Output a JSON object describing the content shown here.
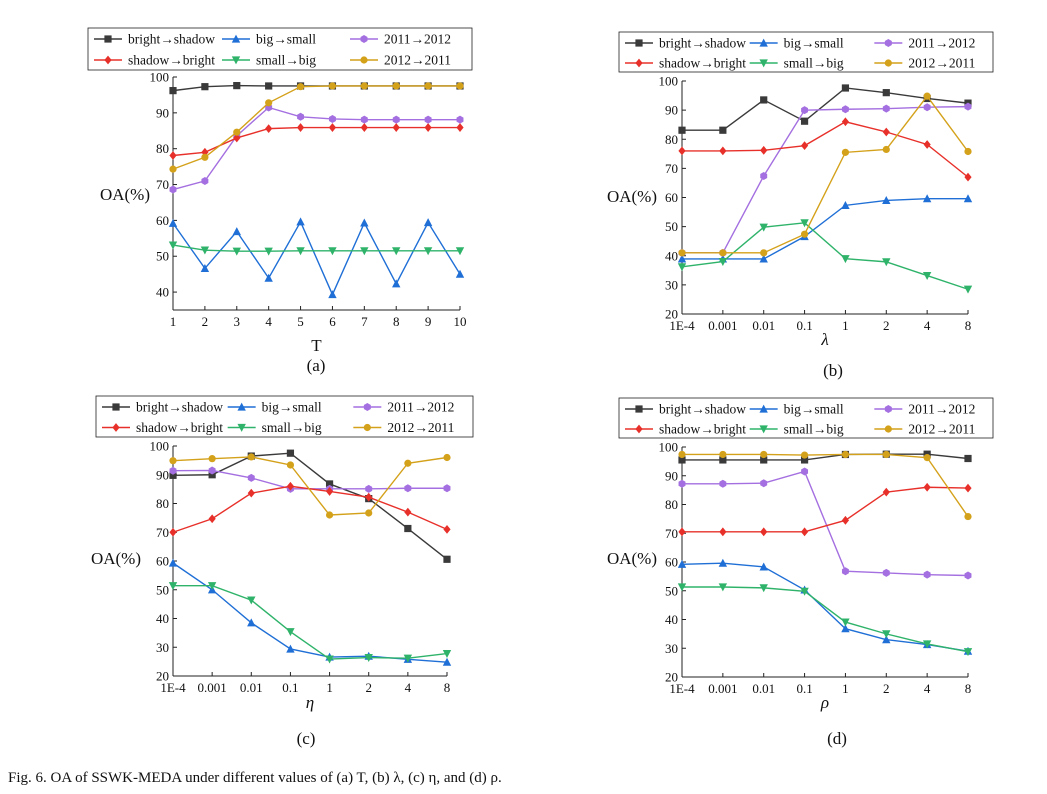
{
  "colors": {
    "bright_shadow": "#3a3a3a",
    "shadow_bright": "#e8302a",
    "big_small": "#1f6fd6",
    "small_big": "#2fb36a",
    "y2011_2012": "#a46fe0",
    "y2012_2011": "#d4a11a"
  },
  "legend": [
    "bright→shadow",
    "big→small",
    "2011→2012",
    "shadow→bright",
    "small→big",
    "2012→2011"
  ],
  "caption": "Fig. 6.   OA of SSWK-MEDA under different values of (a) T, (b) λ, (c) η, and (d) ρ.",
  "chart_data": [
    {
      "type": "line",
      "panel_label": "(a)",
      "xlabel": "T",
      "ylabel": "OA(%)",
      "ylim": [
        35,
        100
      ],
      "yticks": [
        40,
        50,
        60,
        70,
        80,
        90,
        100
      ],
      "categories": [
        "1",
        "2",
        "3",
        "4",
        "5",
        "6",
        "7",
        "8",
        "9",
        "10"
      ],
      "series": [
        {
          "name": "bright→shadow",
          "marker": "square",
          "values": [
            96.2,
            97.3,
            97.6,
            97.5,
            97.5,
            97.5,
            97.5,
            97.5,
            97.5,
            97.5
          ]
        },
        {
          "name": "big→small",
          "marker": "triangle-up",
          "values": [
            59.2,
            46.6,
            56.9,
            43.9,
            59.6,
            39.3,
            59.3,
            42.3,
            59.4,
            45.0
          ]
        },
        {
          "name": "2011→2012",
          "marker": "hexagon",
          "values": [
            68.6,
            71.0,
            83.6,
            91.5,
            88.9,
            88.3,
            88.1,
            88.1,
            88.1,
            88.1
          ]
        },
        {
          "name": "shadow→bright",
          "marker": "diamond",
          "values": [
            78.1,
            79.0,
            83.0,
            85.6,
            85.9,
            85.9,
            85.9,
            85.9,
            85.9,
            85.9
          ]
        },
        {
          "name": "small→big",
          "marker": "triangle-down",
          "values": [
            53.1,
            51.7,
            51.4,
            51.4,
            51.5,
            51.5,
            51.5,
            51.5,
            51.5,
            51.5
          ]
        },
        {
          "name": "2012→2011",
          "marker": "circle",
          "values": [
            74.3,
            77.6,
            84.6,
            92.8,
            97.3,
            97.5,
            97.5,
            97.5,
            97.5,
            97.5
          ]
        }
      ]
    },
    {
      "type": "line",
      "panel_label": "(b)",
      "xlabel": "λ",
      "ylabel": "OA(%)",
      "ylim": [
        20,
        100
      ],
      "yticks": [
        20,
        30,
        40,
        50,
        60,
        70,
        80,
        90,
        100
      ],
      "categories": [
        "1E-4",
        "0.001",
        "0.01",
        "0.1",
        "1",
        "2",
        "4",
        "8"
      ],
      "series": [
        {
          "name": "bright→shadow",
          "marker": "square",
          "values": [
            83.1,
            83.1,
            93.5,
            86.2,
            97.6,
            96.0,
            94.0,
            92.4
          ]
        },
        {
          "name": "big→small",
          "marker": "triangle-up",
          "values": [
            38.9,
            38.9,
            38.9,
            46.6,
            57.3,
            59.0,
            59.6,
            59.6
          ]
        },
        {
          "name": "2011→2012",
          "marker": "hexagon",
          "values": [
            41.0,
            41.0,
            67.4,
            90.0,
            90.3,
            90.5,
            91.0,
            91.2
          ]
        },
        {
          "name": "shadow→bright",
          "marker": "diamond",
          "values": [
            76.0,
            76.0,
            76.2,
            77.8,
            86.0,
            82.5,
            78.2,
            67.0
          ]
        },
        {
          "name": "small→big",
          "marker": "triangle-down",
          "values": [
            36.2,
            38.0,
            49.8,
            51.3,
            39.0,
            37.9,
            33.2,
            28.5
          ]
        },
        {
          "name": "2012→2011",
          "marker": "circle",
          "values": [
            41.0,
            41.0,
            41.0,
            47.4,
            75.5,
            76.5,
            94.8,
            75.8
          ]
        }
      ]
    },
    {
      "type": "line",
      "panel_label": "(c)",
      "xlabel": "η",
      "ylabel": "OA(%)",
      "ylim": [
        20,
        100
      ],
      "yticks": [
        20,
        30,
        40,
        50,
        60,
        70,
        80,
        90,
        100
      ],
      "categories": [
        "1E-4",
        "0.001",
        "0.01",
        "0.1",
        "1",
        "2",
        "4",
        "8"
      ],
      "series": [
        {
          "name": "bright→shadow",
          "marker": "square",
          "values": [
            89.8,
            90.0,
            96.5,
            97.5,
            86.8,
            81.7,
            71.3,
            60.6
          ]
        },
        {
          "name": "big→small",
          "marker": "triangle-up",
          "values": [
            59.3,
            50.0,
            38.5,
            29.4,
            26.6,
            26.9,
            25.8,
            24.8
          ]
        },
        {
          "name": "2011→2012",
          "marker": "hexagon",
          "values": [
            91.4,
            91.5,
            88.9,
            85.1,
            85.1,
            85.1,
            85.3,
            85.3
          ]
        },
        {
          "name": "shadow→bright",
          "marker": "diamond",
          "values": [
            70.0,
            74.7,
            83.6,
            86.0,
            84.2,
            82.2,
            77.0,
            71.0
          ]
        },
        {
          "name": "small→big",
          "marker": "triangle-down",
          "values": [
            51.4,
            51.4,
            46.4,
            35.4,
            25.9,
            26.4,
            26.2,
            27.8
          ]
        },
        {
          "name": "2012→2011",
          "marker": "circle",
          "values": [
            94.9,
            95.6,
            96.2,
            93.4,
            76.0,
            76.7,
            94.0,
            96.0
          ]
        }
      ]
    },
    {
      "type": "line",
      "panel_label": "(d)",
      "xlabel": "ρ",
      "ylabel": "OA(%)",
      "ylim": [
        20,
        100
      ],
      "yticks": [
        20,
        30,
        40,
        50,
        60,
        70,
        80,
        90,
        100
      ],
      "categories": [
        "1E-4",
        "0.001",
        "0.01",
        "0.1",
        "1",
        "2",
        "4",
        "8"
      ],
      "series": [
        {
          "name": "bright→shadow",
          "marker": "square",
          "values": [
            95.5,
            95.5,
            95.5,
            95.5,
            97.4,
            97.5,
            97.5,
            96.0
          ]
        },
        {
          "name": "big→small",
          "marker": "triangle-up",
          "values": [
            59.2,
            59.6,
            58.3,
            50.3,
            36.8,
            33.0,
            31.3,
            29.0
          ]
        },
        {
          "name": "2011→2012",
          "marker": "hexagon",
          "values": [
            87.2,
            87.2,
            87.4,
            91.5,
            56.8,
            56.2,
            55.6,
            55.3
          ]
        },
        {
          "name": "shadow→bright",
          "marker": "diamond",
          "values": [
            70.5,
            70.5,
            70.5,
            70.5,
            74.5,
            84.3,
            86.0,
            85.7
          ]
        },
        {
          "name": "small→big",
          "marker": "triangle-down",
          "values": [
            51.3,
            51.3,
            51.0,
            49.8,
            39.1,
            35.0,
            31.5,
            28.8
          ]
        },
        {
          "name": "2012→2011",
          "marker": "circle",
          "values": [
            97.4,
            97.4,
            97.4,
            97.2,
            97.4,
            97.4,
            96.3,
            75.8
          ]
        }
      ]
    }
  ]
}
